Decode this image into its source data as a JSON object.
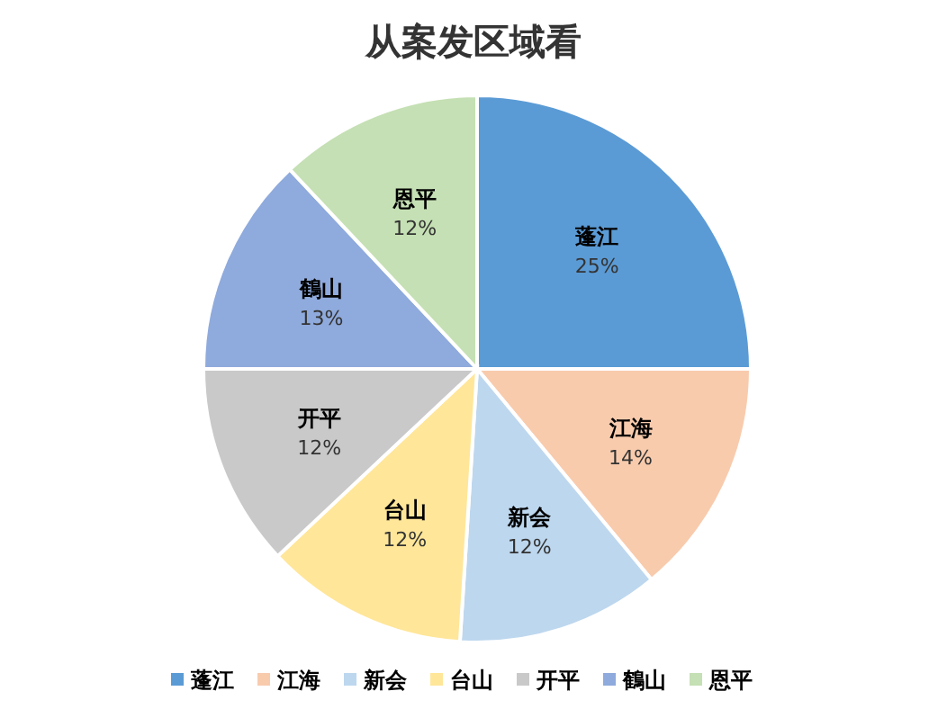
{
  "chart_data": {
    "type": "pie",
    "title": "从案发区域看",
    "categories": [
      "蓬江",
      "江海",
      "新会",
      "台山",
      "开平",
      "鶴山",
      "恩平"
    ],
    "values": [
      25,
      14,
      12,
      12,
      12,
      13,
      12
    ],
    "colors": [
      "#5b9bd5",
      "#f8cbad",
      "#bdd7ee",
      "#ffe699",
      "#c9c9c9",
      "#8faadc",
      "#c5e0b4"
    ],
    "value_labels": [
      "25%",
      "14%",
      "12%",
      "12%",
      "12%",
      "13%",
      "12%"
    ],
    "legend": "bottom"
  }
}
